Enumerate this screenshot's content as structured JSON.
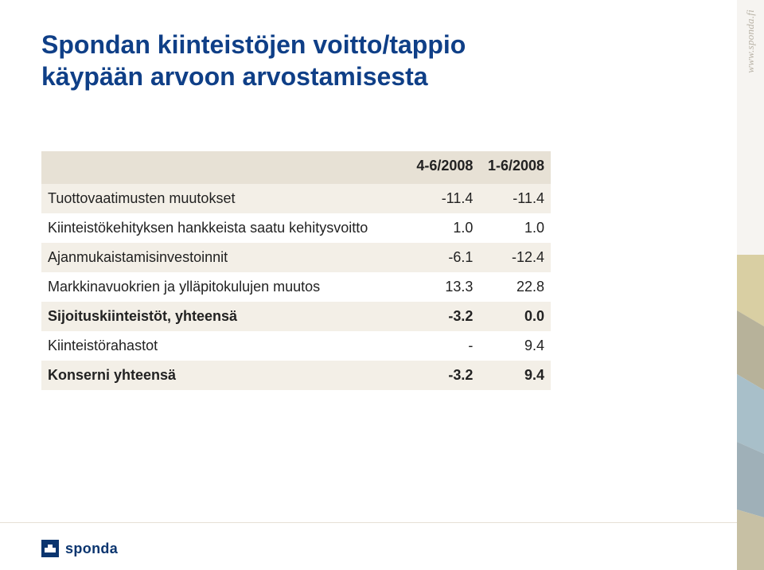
{
  "title": {
    "line1": "Spondan kiinteistöjen voitto/tappio",
    "line2": "käypään arvoon arvostamisesta",
    "color": "#0f3f87",
    "font_size": 32,
    "font_weight": 700
  },
  "table": {
    "type": "table",
    "columns": [
      {
        "label": "",
        "align": "left",
        "width_pct": 72
      },
      {
        "label": "4-6/2008",
        "align": "right",
        "width_pct": 14
      },
      {
        "label": "1-6/2008",
        "align": "right",
        "width_pct": 14
      }
    ],
    "rows": [
      {
        "stripe": true,
        "bold": false,
        "cells": [
          "Tuottovaatimusten muutokset",
          "-11.4",
          "-11.4"
        ]
      },
      {
        "stripe": false,
        "bold": false,
        "cells": [
          "Kiinteistökehityksen hankkeista saatu kehitysvoitto",
          "1.0",
          "1.0"
        ]
      },
      {
        "stripe": true,
        "bold": false,
        "cells": [
          "Ajanmukaistamisinvestoinnit",
          "-6.1",
          "-12.4"
        ]
      },
      {
        "stripe": false,
        "bold": false,
        "cells": [
          "Markkinavuokrien ja ylläpitokulujen muutos",
          "13.3",
          "22.8"
        ]
      },
      {
        "stripe": true,
        "bold": true,
        "cells": [
          "Sijoituskiinteistöt, yhteensä",
          "-3.2",
          "0.0"
        ]
      },
      {
        "stripe": false,
        "bold": false,
        "cells": [
          "Kiinteistörahastot",
          "-",
          "9.4"
        ]
      },
      {
        "stripe": true,
        "bold": true,
        "cells": [
          "Konserni yhteensä",
          "-3.2",
          "9.4"
        ]
      }
    ],
    "body_font_size": 18,
    "text_color": "#222222",
    "header_bg": "#e7e1d5",
    "stripe_bg": "#f3efe7",
    "background_color": "#ffffff"
  },
  "sidebar": {
    "url_text": "www.sponda.fi",
    "bg": "#f6f4f1",
    "text_color": "#b9b3a7",
    "deco_colors": [
      "#d9cfa3",
      "#b7b29a",
      "#a8bfc9",
      "#9fb0b8",
      "#c7c0a4"
    ]
  },
  "logo": {
    "word": "sponda",
    "color": "#0b356f"
  }
}
